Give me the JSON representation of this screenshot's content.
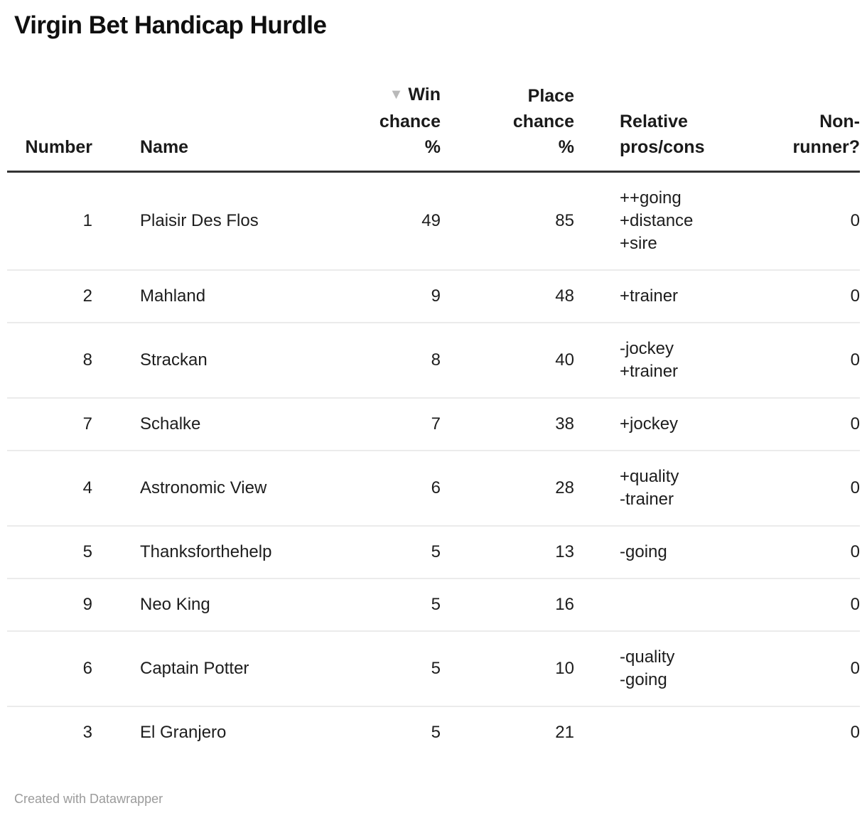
{
  "title": "Virgin Bet Handicap Hurdle",
  "colors": {
    "header_border": "#333333",
    "row_divider": "#ebebeb",
    "text": "#1d1d1d",
    "muted_footer": "#9b9b9b",
    "sort_icon": "#b9b9b9",
    "background": "#ffffff"
  },
  "table": {
    "sort_icon": "▼",
    "columns": [
      {
        "id": "number",
        "label": "Number"
      },
      {
        "id": "name",
        "label": "Name"
      },
      {
        "id": "win",
        "label": "Win\nchance\n%",
        "sorted": "descending"
      },
      {
        "id": "place",
        "label": "Place\nchance\n%"
      },
      {
        "id": "pros",
        "label": "Relative\npros/cons"
      },
      {
        "id": "nonrunner",
        "label": "Non-\nrunner?"
      }
    ],
    "rows": [
      {
        "number": "1",
        "name": "Plaisir Des Flos",
        "win": "49",
        "place": "85",
        "pros": "++going\n+distance\n+sire",
        "nonrunner": "0"
      },
      {
        "number": "2",
        "name": "Mahland",
        "win": "9",
        "place": "48",
        "pros": "+trainer",
        "nonrunner": "0"
      },
      {
        "number": "8",
        "name": "Strackan",
        "win": "8",
        "place": "40",
        "pros": "-jockey\n+trainer",
        "nonrunner": "0"
      },
      {
        "number": "7",
        "name": "Schalke",
        "win": "7",
        "place": "38",
        "pros": "+jockey",
        "nonrunner": "0"
      },
      {
        "number": "4",
        "name": "Astronomic View",
        "win": "6",
        "place": "28",
        "pros": "+quality\n-trainer",
        "nonrunner": "0"
      },
      {
        "number": "5",
        "name": "Thanksforthehelp",
        "win": "5",
        "place": "13",
        "pros": "-going",
        "nonrunner": "0"
      },
      {
        "number": "9",
        "name": "Neo King",
        "win": "5",
        "place": "16",
        "pros": "",
        "nonrunner": "0"
      },
      {
        "number": "6",
        "name": "Captain Potter",
        "win": "5",
        "place": "10",
        "pros": "-quality\n-going",
        "nonrunner": "0"
      },
      {
        "number": "3",
        "name": "El Granjero",
        "win": "5",
        "place": "21",
        "pros": "",
        "nonrunner": "0"
      }
    ]
  },
  "footer": {
    "credit": "Created with Datawrapper"
  },
  "chart_data": {
    "type": "table",
    "title": "Virgin Bet Handicap Hurdle",
    "columns": [
      "Number",
      "Name",
      "Win chance %",
      "Place chance %",
      "Relative pros/cons",
      "Non-runner?"
    ],
    "sorted_by": "Win chance %",
    "sort_order": "descending",
    "rows": [
      {
        "number": 1,
        "name": "Plaisir Des Flos",
        "win_chance_pct": 49,
        "place_chance_pct": 85,
        "relative_pros_cons": [
          "++going",
          "+distance",
          "+sire"
        ],
        "non_runner": 0
      },
      {
        "number": 2,
        "name": "Mahland",
        "win_chance_pct": 9,
        "place_chance_pct": 48,
        "relative_pros_cons": [
          "+trainer"
        ],
        "non_runner": 0
      },
      {
        "number": 8,
        "name": "Strackan",
        "win_chance_pct": 8,
        "place_chance_pct": 40,
        "relative_pros_cons": [
          "-jockey",
          "+trainer"
        ],
        "non_runner": 0
      },
      {
        "number": 7,
        "name": "Schalke",
        "win_chance_pct": 7,
        "place_chance_pct": 38,
        "relative_pros_cons": [
          "+jockey"
        ],
        "non_runner": 0
      },
      {
        "number": 4,
        "name": "Astronomic View",
        "win_chance_pct": 6,
        "place_chance_pct": 28,
        "relative_pros_cons": [
          "+quality",
          "-trainer"
        ],
        "non_runner": 0
      },
      {
        "number": 5,
        "name": "Thanksforthehelp",
        "win_chance_pct": 5,
        "place_chance_pct": 13,
        "relative_pros_cons": [
          "-going"
        ],
        "non_runner": 0
      },
      {
        "number": 9,
        "name": "Neo King",
        "win_chance_pct": 5,
        "place_chance_pct": 16,
        "relative_pros_cons": [],
        "non_runner": 0
      },
      {
        "number": 6,
        "name": "Captain Potter",
        "win_chance_pct": 5,
        "place_chance_pct": 10,
        "relative_pros_cons": [
          "-quality",
          "-going"
        ],
        "non_runner": 0
      },
      {
        "number": 3,
        "name": "El Granjero",
        "win_chance_pct": 5,
        "place_chance_pct": 21,
        "relative_pros_cons": [],
        "non_runner": 0
      }
    ]
  }
}
